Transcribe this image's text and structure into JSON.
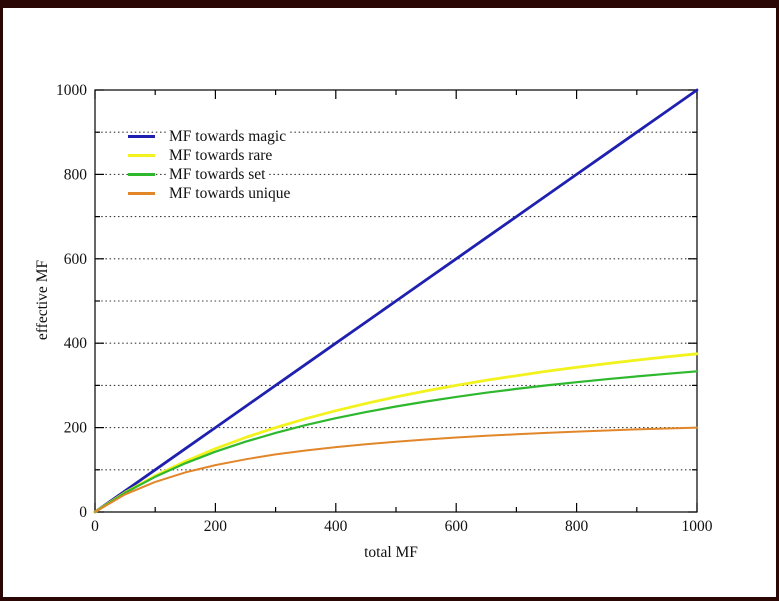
{
  "page": {
    "background": "#ffffff",
    "frame_color": "#2a0704"
  },
  "chart_data": {
    "type": "line",
    "title": "",
    "xlabel": "total MF",
    "ylabel": "effective MF",
    "xlim": [
      0,
      1000
    ],
    "ylim": [
      0,
      1000
    ],
    "x_major_ticks": [
      0,
      200,
      400,
      600,
      800,
      1000
    ],
    "y_major_ticks": [
      0,
      200,
      400,
      600,
      800,
      1000
    ],
    "minor_tick_step": 100,
    "grid": "horizontal-dotted-every-100",
    "grid_color": "#3c3c3c",
    "axis_color": "#000000",
    "legend_position": "top-left-inside",
    "x": [
      0,
      50,
      100,
      150,
      200,
      250,
      300,
      350,
      400,
      450,
      500,
      550,
      600,
      650,
      700,
      750,
      800,
      850,
      900,
      950,
      1000
    ],
    "series": [
      {
        "name": "MF towards magic",
        "color": "#2020b0",
        "stroke_width": 2.8,
        "values": [
          0,
          50,
          100,
          150,
          200,
          250,
          300,
          350,
          400,
          450,
          500,
          550,
          600,
          650,
          700,
          750,
          800,
          850,
          900,
          950,
          1000
        ]
      },
      {
        "name": "MF towards rare",
        "color": "#f2f21e",
        "stroke_width": 2.8,
        "values": [
          0,
          46.2,
          85.7,
          120,
          150,
          176.5,
          200,
          221.1,
          240,
          257.1,
          272.7,
          287,
          300,
          312,
          323.1,
          333.3,
          342.9,
          351.7,
          360,
          367.7,
          375
        ]
      },
      {
        "name": "MF towards set",
        "color": "#2eb82e",
        "stroke_width": 2.2,
        "values": [
          0,
          45.5,
          83.3,
          115.4,
          142.9,
          166.7,
          187.5,
          205.9,
          222.2,
          236.8,
          250,
          261.9,
          272.7,
          282.6,
          291.7,
          300,
          307.7,
          314.8,
          321.4,
          327.6,
          333.3
        ]
      },
      {
        "name": "MF towards unique",
        "color": "#e2862a",
        "stroke_width": 2.0,
        "values": [
          0,
          41.7,
          71.4,
          93.8,
          111.1,
          125,
          136.4,
          145.8,
          153.8,
          160.7,
          166.7,
          171.9,
          176.5,
          180.6,
          184.2,
          187.5,
          190.5,
          193.2,
          195.7,
          197.9,
          200
        ]
      }
    ]
  }
}
